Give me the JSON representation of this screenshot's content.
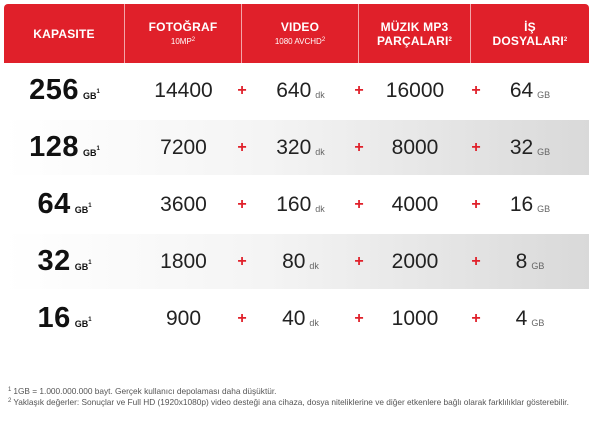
{
  "header": {
    "capacity": "KAPASITE",
    "photo": "FOTOĞRAF",
    "photo_sub": "10MP",
    "photo_sup": "2",
    "video": "VIDEO",
    "video_sub": "1080 AVCHD",
    "video_sup": "2",
    "music_line1": "MÜZIK MP3",
    "music_line2": "PARÇALARI",
    "music_sup": "2",
    "docs_line1": "İŞ",
    "docs_line2": "DOSYALARI",
    "docs_sup": "2"
  },
  "units": {
    "capacity": "GB",
    "capacity_sup": "1",
    "video": "dk",
    "docs": "GB",
    "plus": "+"
  },
  "rows": [
    {
      "capacity": "256",
      "photo": "14400",
      "video": "640",
      "music": "16000",
      "docs": "64"
    },
    {
      "capacity": "128",
      "photo": "7200",
      "video": "320",
      "music": "8000",
      "docs": "32"
    },
    {
      "capacity": "64",
      "photo": "3600",
      "video": "160",
      "music": "4000",
      "docs": "16"
    },
    {
      "capacity": "32",
      "photo": "1800",
      "video": "80",
      "music": "2000",
      "docs": "8"
    },
    {
      "capacity": "16",
      "photo": "900",
      "video": "40",
      "music": "1000",
      "docs": "4"
    }
  ],
  "footnotes": [
    {
      "marker": "1",
      "text": "1GB = 1.000.000.000 bayt. Gerçek kullanıcı depolaması daha düşüktür."
    },
    {
      "marker": "2",
      "text": "Yaklaşık değerler: Sonuçlar ve Full HD (1920x1080p) video desteği ana cihaza, dosya niteliklerine ve diğer etkenlere bağlı olarak farklılıklar gösterebilir."
    }
  ],
  "colors": {
    "accent": "#e0202a",
    "shade": "#d9d9d9"
  }
}
